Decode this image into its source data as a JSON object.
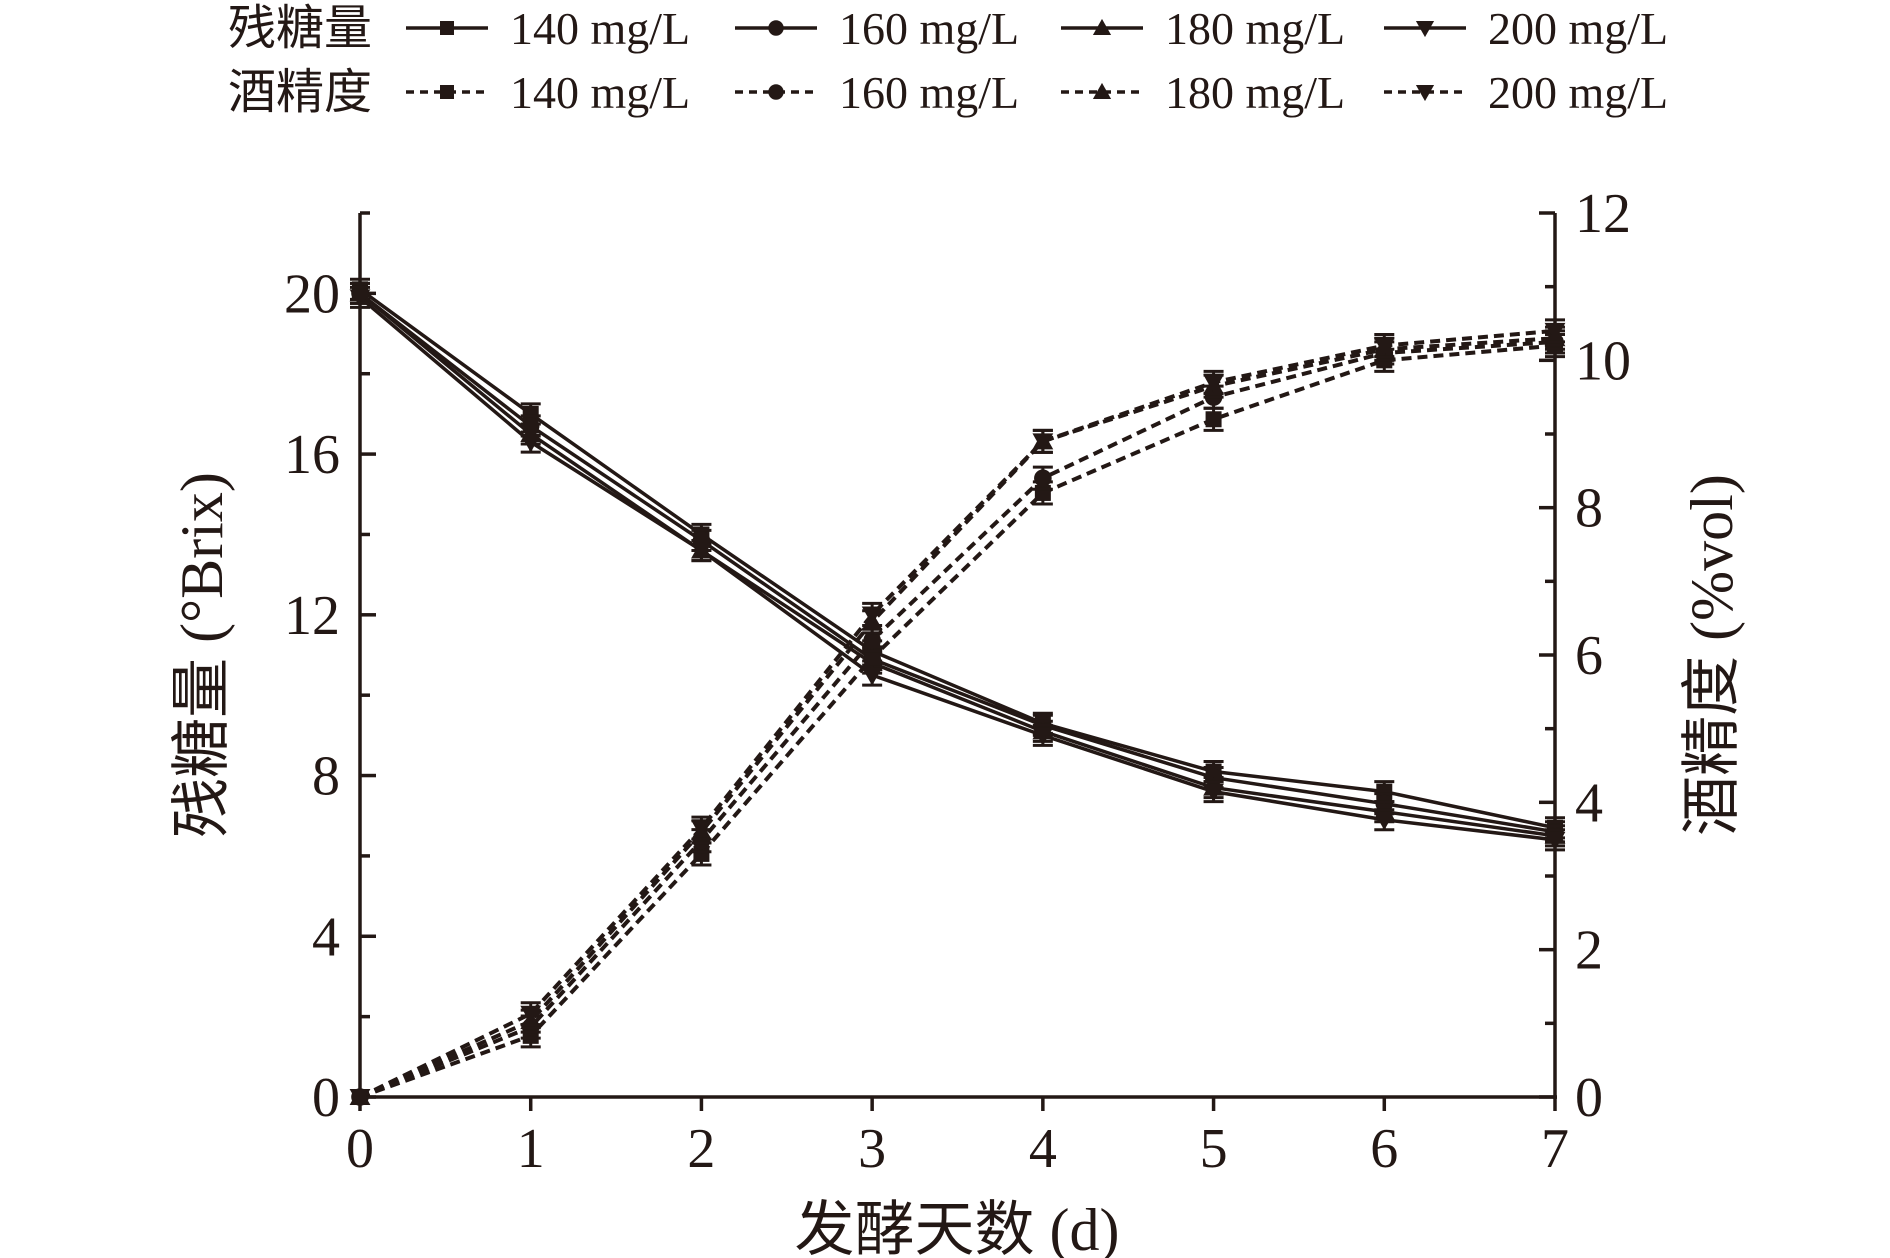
{
  "chart_data": {
    "type": "line",
    "title": "",
    "xlabel": "发酵天数 (d)",
    "ylabel_left": "残糖量 (°Brix)",
    "ylabel_right": "酒精度 (%vol)",
    "x": [
      0,
      1,
      2,
      3,
      4,
      5,
      6,
      7
    ],
    "xlim": [
      0,
      7
    ],
    "ylim_left": [
      0,
      22
    ],
    "ylim_right": [
      0,
      12
    ],
    "xticks": [
      "0",
      "1",
      "2",
      "3",
      "4",
      "5",
      "6",
      "7"
    ],
    "yticks_left": [
      "0",
      "4",
      "8",
      "12",
      "16",
      "20"
    ],
    "yticks_right": [
      "0",
      "2",
      "4",
      "6",
      "8",
      "10",
      "12"
    ],
    "grid": false,
    "legend": {
      "placement": "top",
      "group_labels": [
        "残糖量",
        "酒精度"
      ],
      "entries": [
        "140 mg/L",
        "160 mg/L",
        "180 mg/L",
        "200 mg/L"
      ]
    },
    "error_bar_approx": 0.25,
    "series": [
      {
        "name": "残糖量 140 mg/L",
        "axis": "left",
        "style": "solid",
        "marker": "square",
        "values": [
          20.1,
          17.0,
          14.0,
          11.1,
          9.3,
          8.1,
          7.6,
          6.7
        ]
      },
      {
        "name": "残糖量 160 mg/L",
        "axis": "left",
        "style": "solid",
        "marker": "circle",
        "values": [
          20.0,
          16.7,
          13.85,
          10.9,
          9.25,
          7.95,
          7.3,
          6.6
        ]
      },
      {
        "name": "残糖量 180 mg/L",
        "axis": "left",
        "style": "solid",
        "marker": "triangle-up",
        "values": [
          20.0,
          16.5,
          13.6,
          10.8,
          9.1,
          7.7,
          7.1,
          6.5
        ]
      },
      {
        "name": "残糖量 200 mg/L",
        "axis": "left",
        "style": "solid",
        "marker": "triangle-down",
        "values": [
          19.9,
          16.3,
          13.6,
          10.5,
          9.0,
          7.6,
          6.9,
          6.4
        ]
      },
      {
        "name": "酒精度 140 mg/L",
        "axis": "right",
        "style": "dashed",
        "marker": "square",
        "values": [
          0,
          0.83,
          3.3,
          5.96,
          8.2,
          9.2,
          10.0,
          10.2
        ]
      },
      {
        "name": "酒精度 160 mg/L",
        "axis": "right",
        "style": "dashed",
        "marker": "circle",
        "values": [
          0,
          0.95,
          3.48,
          6.2,
          8.4,
          9.5,
          10.1,
          10.25
        ]
      },
      {
        "name": "酒精度 180 mg/L",
        "axis": "right",
        "style": "dashed",
        "marker": "triangle-up",
        "values": [
          0,
          1.03,
          3.6,
          6.45,
          8.9,
          9.65,
          10.15,
          10.3
        ]
      },
      {
        "name": "酒精度 200 mg/L",
        "axis": "right",
        "style": "dashed",
        "marker": "triangle-down",
        "values": [
          0,
          1.13,
          3.65,
          6.55,
          8.9,
          9.7,
          10.2,
          10.4
        ]
      }
    ],
    "colors": {
      "ink": "#231815"
    }
  }
}
